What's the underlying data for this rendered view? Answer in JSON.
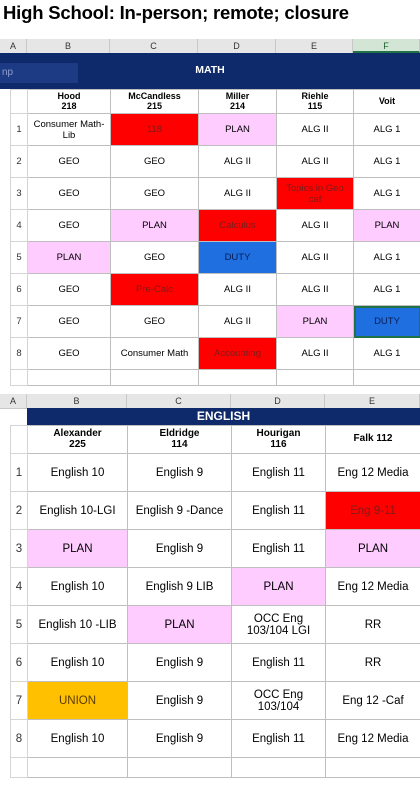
{
  "page_title": "High School:  In-person; remote; closure",
  "math": {
    "column_letters": [
      "A",
      "B",
      "C",
      "D",
      "E",
      "F"
    ],
    "name_box": "np",
    "banner": "MATH",
    "headers": [
      {
        "name": "Hood",
        "room": "218"
      },
      {
        "name": "McCandless",
        "room": "215"
      },
      {
        "name": "Miller",
        "room": "214"
      },
      {
        "name": "Riehle",
        "room": "115"
      },
      {
        "name": "Voit",
        "room": ""
      }
    ],
    "rows": [
      {
        "num": "1",
        "cells": [
          "Consumer Math-Lib",
          "118",
          "PLAN",
          "ALG II",
          "ALG 1"
        ]
      },
      {
        "num": "2",
        "cells": [
          "GEO",
          "GEO",
          "ALG II",
          "ALG II",
          "ALG 1"
        ]
      },
      {
        "num": "3",
        "cells": [
          "GEO",
          "GEO",
          "ALG II",
          "Topics in Geo caf",
          "ALG 1"
        ]
      },
      {
        "num": "4",
        "cells": [
          "GEO",
          "PLAN",
          "Calculus",
          "ALG II",
          "PLAN"
        ]
      },
      {
        "num": "5",
        "cells": [
          "PLAN",
          "GEO",
          "DUTY",
          "ALG II",
          "ALG 1"
        ]
      },
      {
        "num": "6",
        "cells": [
          "GEO",
          "Pre-Calc",
          "ALG II",
          "ALG II",
          "ALG 1"
        ]
      },
      {
        "num": "7",
        "cells": [
          "GEO",
          "GEO",
          "ALG II",
          "PLAN",
          "DUTY"
        ]
      },
      {
        "num": "8",
        "cells": [
          "GEO",
          "Consumer Math",
          "Accounting",
          "ALG II",
          "ALG 1"
        ]
      }
    ],
    "colors": {
      "banner": "#0f2a6b",
      "plan": "#ffccff",
      "red": "#ff0000",
      "duty": "#1f6fe0"
    }
  },
  "english": {
    "column_letters": [
      "A",
      "B",
      "C",
      "D",
      "E"
    ],
    "banner": "ENGLISH",
    "headers": [
      {
        "name": "Alexander",
        "room": "225"
      },
      {
        "name": "Eldridge",
        "room": "114"
      },
      {
        "name": "Hourigan",
        "room": "116"
      },
      {
        "name": "Falk 112",
        "room": ""
      }
    ],
    "rows": [
      {
        "num": "1",
        "cells": [
          "English 10",
          "English 9",
          "English 11",
          "Eng 12 Media"
        ]
      },
      {
        "num": "2",
        "cells": [
          "English 10-LGI",
          "English 9 -Dance",
          "English 11",
          "Eng 9-11"
        ]
      },
      {
        "num": "3",
        "cells": [
          "PLAN",
          "English 9",
          "English 11",
          "PLAN"
        ]
      },
      {
        "num": "4",
        "cells": [
          "English 10",
          "English 9 LIB",
          "PLAN",
          "Eng 12 Media"
        ]
      },
      {
        "num": "5",
        "cells": [
          "English 10 -LIB",
          "PLAN",
          "OCC Eng 103/104  LGI",
          "RR"
        ]
      },
      {
        "num": "6",
        "cells": [
          "English 10",
          "English 9",
          "English 11",
          "RR"
        ]
      },
      {
        "num": "7",
        "cells": [
          "UNION",
          "English 9",
          "OCC Eng 103/104",
          "Eng 12 -Caf"
        ]
      },
      {
        "num": "8",
        "cells": [
          "English 10",
          "English 9",
          "English 11",
          "Eng 12 Media"
        ]
      }
    ],
    "colors": {
      "banner": "#0f2a6b",
      "plan": "#ffccff",
      "red": "#ff0000",
      "union": "#ffc000"
    }
  }
}
